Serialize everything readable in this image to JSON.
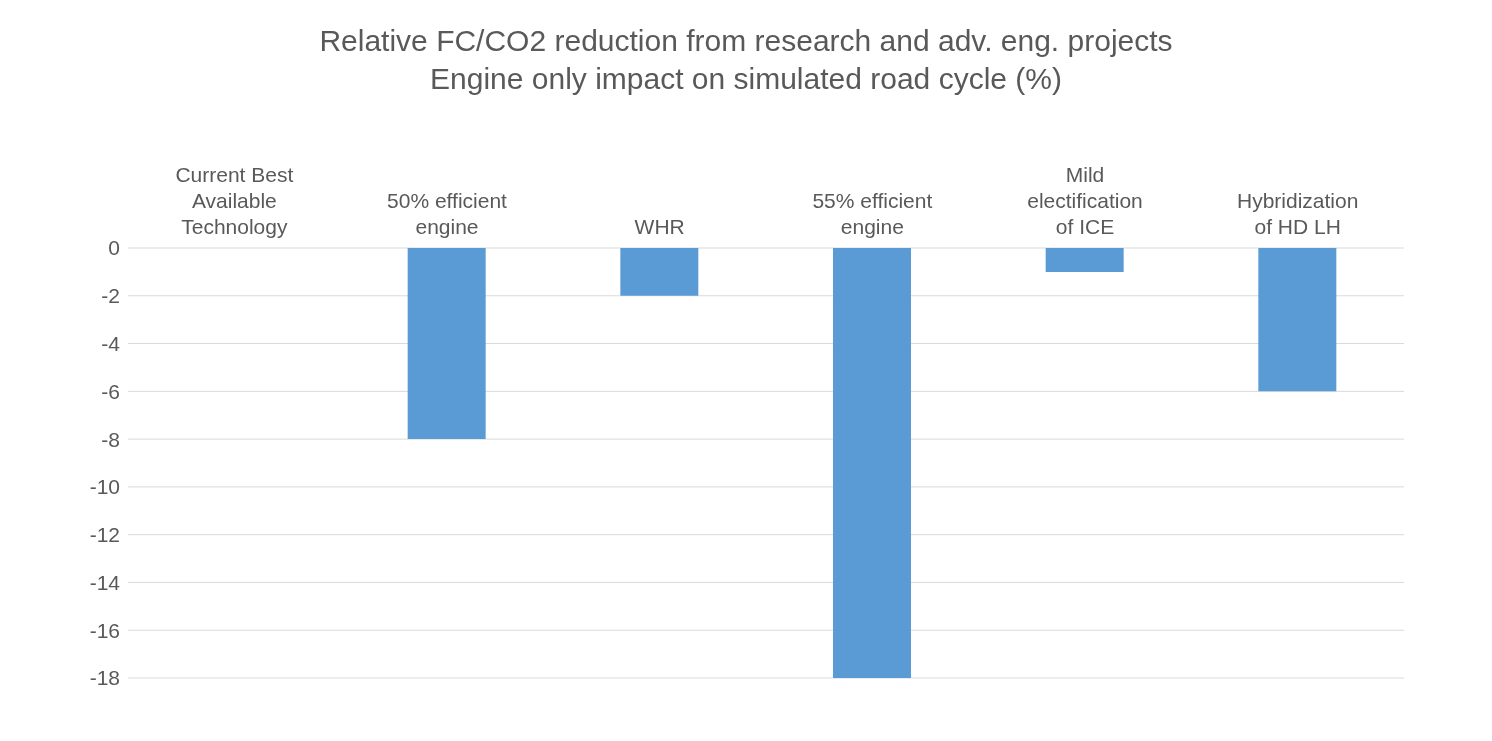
{
  "chart_data": {
    "type": "bar",
    "title": "Relative FC/CO2 reduction from research and adv. eng. projects",
    "subtitle": "Engine only impact on simulated road cycle (%)",
    "categories": [
      "Current Best Available Technology",
      "50% efficient engine",
      "WHR",
      "55% efficient engine",
      "Mild electification of ICE",
      "Hybridization of HD LH"
    ],
    "values": [
      0,
      -8,
      -2,
      -18,
      -1,
      -6
    ],
    "color": "#5b9bd5",
    "ylim": [
      -18,
      0
    ],
    "yticks": [
      0,
      -2,
      -4,
      -6,
      -8,
      -10,
      -12,
      -14,
      -16,
      -18
    ],
    "grid": "y"
  }
}
